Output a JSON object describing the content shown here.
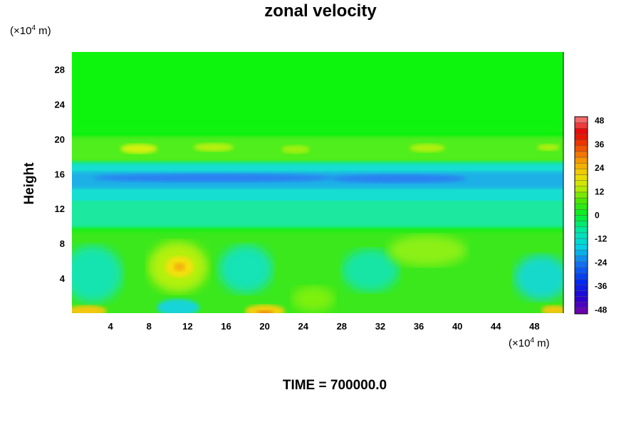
{
  "chart_data": {
    "type": "heatmap",
    "title": "zonal velocity",
    "ylabel": "Height",
    "xlabel": "",
    "x_unit": "(×10⁴ m)",
    "y_unit": "(×10⁴ m)",
    "x_unit_parts": {
      "prefix": "(×10",
      "exp": "4",
      "suffix": " m)"
    },
    "y_unit_parts": {
      "prefix": "(×10",
      "exp": "4",
      "suffix": " m)"
    },
    "xlim": [
      0,
      51
    ],
    "ylim": [
      0,
      30
    ],
    "xticks": [
      "4",
      "8",
      "12",
      "16",
      "20",
      "24",
      "28",
      "32",
      "36",
      "40",
      "44",
      "48"
    ],
    "yticks": [
      "4",
      "8",
      "12",
      "16",
      "20",
      "24",
      "28"
    ],
    "colorbar": {
      "range": [
        -50,
        50
      ],
      "ticks": [
        "48",
        "36",
        "24",
        "12",
        "0",
        "-12",
        "-24",
        "-36",
        "-48"
      ]
    },
    "field_description_bands": [
      {
        "y_range": [
          0,
          10
        ],
        "value_range": [
          -14,
          24
        ]
      },
      {
        "y_range": [
          10,
          13
        ],
        "value_range": [
          -8,
          -4
        ]
      },
      {
        "y_range": [
          13,
          17
        ],
        "value_range": [
          -30,
          -18
        ]
      },
      {
        "y_range": [
          17,
          20
        ],
        "value_range": [
          0,
          14
        ]
      },
      {
        "y_range": [
          20,
          30
        ],
        "value_range": [
          -2,
          2
        ]
      }
    ],
    "footer": "TIME = 700000.0"
  }
}
